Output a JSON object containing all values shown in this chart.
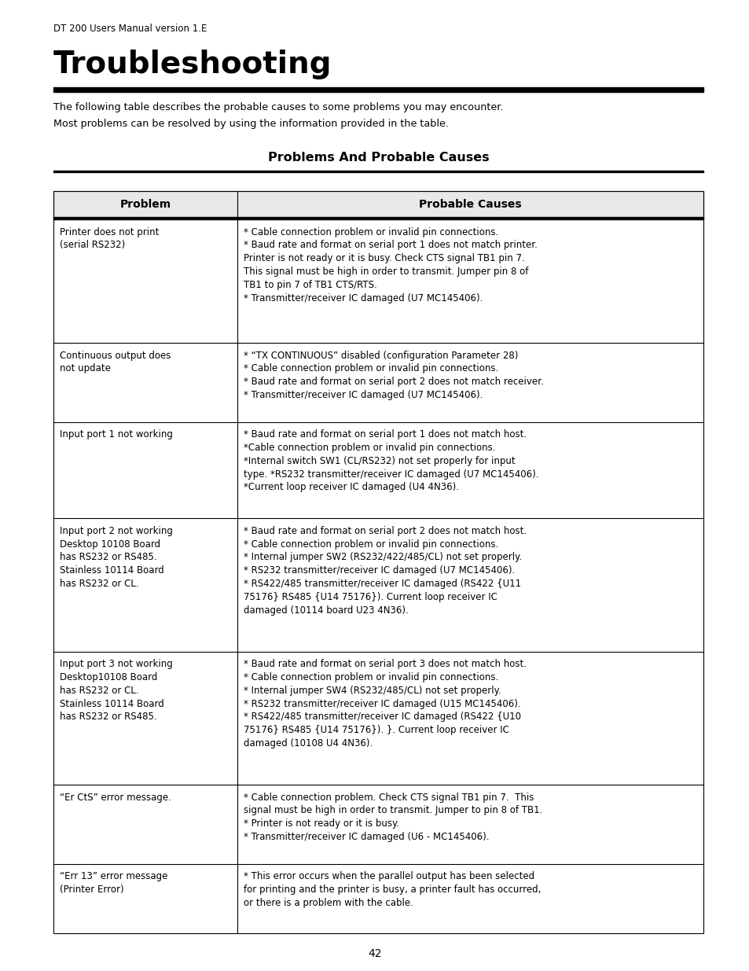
{
  "page_header": "DT 200 Users Manual version 1.E",
  "title": "Troubleshooting",
  "intro_text": "The following table describes the probable causes to some problems you may encounter.\nMost problems can be resolved by using the information provided in the table.",
  "section_title": "Problems And Probable Causes",
  "col_header_1": "Problem",
  "col_header_2": "Probable Causes",
  "rows": [
    {
      "problem": "Printer does not print\n(serial RS232)",
      "causes": "* Cable connection problem or invalid pin connections.\n* Baud rate and format on serial port 1 does not match printer.\nPrinter is not ready or it is busy. Check CTS signal TB1 pin 7.\nThis signal must be high in order to transmit. Jumper pin 8 of\nTB1 to pin 7 of TB1 CTS/RTS.\n* Transmitter/receiver IC damaged (U7 MC145406)."
    },
    {
      "problem": "Continuous output does\nnot update",
      "causes": "* “TX CONTINUOUS” disabled (configuration Parameter 28)\n* Cable connection problem or invalid pin connections.\n* Baud rate and format on serial port 2 does not match receiver.\n* Transmitter/receiver IC damaged (U7 MC145406)."
    },
    {
      "problem": "Input port 1 not working",
      "causes": "* Baud rate and format on serial port 1 does not match host.\n*Cable connection problem or invalid pin connections.\n*Internal switch SW1 (CL/RS232) not set properly for input\ntype. *RS232 transmitter/receiver IC damaged (U7 MC145406).\n*Current loop receiver IC damaged (U4 4N36)."
    },
    {
      "problem": "Input port 2 not working\nDesktop 10108 Board\nhas RS232 or RS485.\nStainless 10114 Board\nhas RS232 or CL.",
      "causes": "* Baud rate and format on serial port 2 does not match host.\n* Cable connection problem or invalid pin connections.\n* Internal jumper SW2 (RS232/422/485/CL) not set properly.\n* RS232 transmitter/receiver IC damaged (U7 MC145406).\n* RS422/485 transmitter/receiver IC damaged (RS422 {U11\n75176} RS485 {U14 75176}). Current loop receiver IC\ndamaged (10114 board U23 4N36)."
    },
    {
      "problem": "Input port 3 not working\nDesktop10108 Board\nhas RS232 or CL.\nStainless 10114 Board\nhas RS232 or RS485.",
      "causes": "* Baud rate and format on serial port 3 does not match host.\n* Cable connection problem or invalid pin connections.\n* Internal jumper SW4 (RS232/485/CL) not set properly.\n* RS232 transmitter/receiver IC damaged (U15 MC145406).\n* RS422/485 transmitter/receiver IC damaged (RS422 {U10\n75176} RS485 {U14 75176}). }. Current loop receiver IC\ndamaged (10108 U4 4N36)."
    },
    {
      "problem": "“Er CtS” error message.",
      "causes": "* Cable connection problem. Check CTS signal TB1 pin 7.  This\nsignal must be high in order to transmit. Jumper to pin 8 of TB1.\n* Printer is not ready or it is busy.\n* Transmitter/receiver IC damaged (U6 - MC145406)."
    },
    {
      "problem": "“Err 13” error message\n(Printer Error)",
      "causes": "* This error occurs when the parallel output has been selected\nfor printing and the printer is busy, a printer fault has occurred,\nor there is a problem with the cable."
    }
  ],
  "page_number": "42",
  "bg_color": "#ffffff",
  "text_color": "#000000",
  "table_border_color": "#000000",
  "figw": 9.54,
  "figh": 12.35,
  "dpi": 100
}
